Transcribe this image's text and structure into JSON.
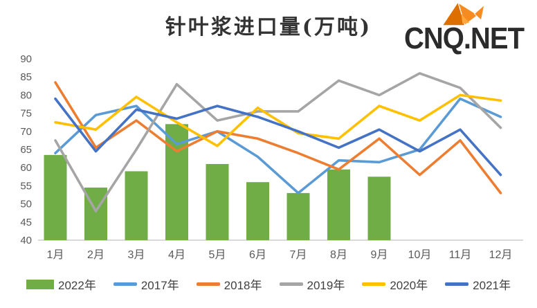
{
  "title": "针叶浆进口量(万吨)",
  "logo": {
    "text": "CNQ.NET",
    "icon": "origami-fox-icon",
    "icon_color": "#F08300",
    "text_color": "#2B2B2B"
  },
  "chart_data": {
    "type": "combo-bar-line",
    "title": "针叶浆进口量(万吨)",
    "categories": [
      "1月",
      "2月",
      "3月",
      "4月",
      "5月",
      "6月",
      "7月",
      "8月",
      "9月",
      "10月",
      "11月",
      "12月"
    ],
    "series": [
      {
        "name": "2022年",
        "type": "bar",
        "color": "#70AD47",
        "values": [
          63.5,
          54.5,
          59,
          72,
          61,
          56,
          53,
          59.5,
          57.5,
          null,
          null,
          null
        ]
      },
      {
        "name": "2017年",
        "type": "line",
        "color": "#5B9BD5",
        "values": [
          64,
          74.5,
          77,
          66.5,
          70,
          63,
          53,
          62,
          61.5,
          65,
          79,
          74
        ]
      },
      {
        "name": "2018年",
        "type": "line",
        "color": "#ED7D31",
        "values": [
          83.5,
          65.5,
          73,
          64.5,
          70,
          68,
          64,
          59.5,
          68,
          58,
          67.5,
          53
        ]
      },
      {
        "name": "2019年",
        "type": "line",
        "color": "#A5A5A5",
        "values": [
          67.5,
          48,
          65,
          83,
          73,
          75.5,
          75.5,
          84,
          80,
          86,
          82,
          71
        ]
      },
      {
        "name": "2020年",
        "type": "line",
        "color": "#FFC000",
        "values": [
          72.5,
          70.5,
          79.5,
          72.5,
          66,
          76.5,
          69.5,
          68,
          77,
          73,
          80,
          78.5
        ]
      },
      {
        "name": "2021年",
        "type": "line",
        "color": "#4472C4",
        "values": [
          79,
          64.5,
          76,
          73.5,
          77,
          74,
          70,
          65.5,
          70.5,
          64.5,
          70.5,
          58
        ]
      }
    ],
    "ylim": [
      40,
      90
    ],
    "y_ticks": [
      90,
      85,
      80,
      75,
      70,
      65,
      60,
      55,
      50,
      45,
      40
    ],
    "grid": false,
    "legend_position": "bottom",
    "axis_color": "#D9D9D9",
    "tick_label_color": "#595959"
  }
}
